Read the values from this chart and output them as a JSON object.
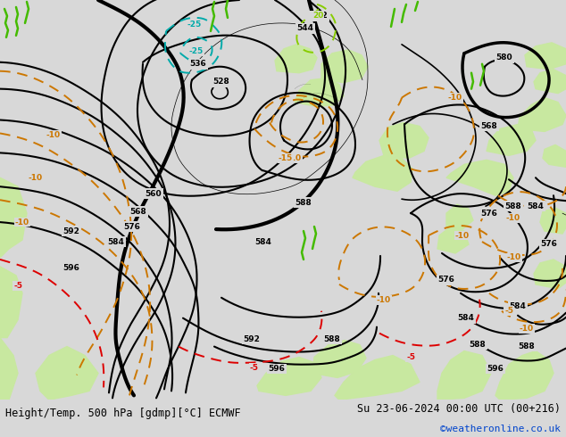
{
  "title_left": "Height/Temp. 500 hPa [gdmp][°C] ECMWF",
  "title_right": "Su 23-06-2024 00:00 UTC (00+216)",
  "credit": "©weatheronline.co.uk",
  "bg_color": "#d8d8d8",
  "map_bg": "#d8d8d8",
  "green_land": "#c8e8a0",
  "bottom_bar_color": "#e8e8e8",
  "title_color": "#000000",
  "credit_color": "#0044cc",
  "font_size_title": 8.5,
  "font_size_credit": 8,
  "figsize": [
    6.34,
    4.9
  ],
  "dpi": 100
}
